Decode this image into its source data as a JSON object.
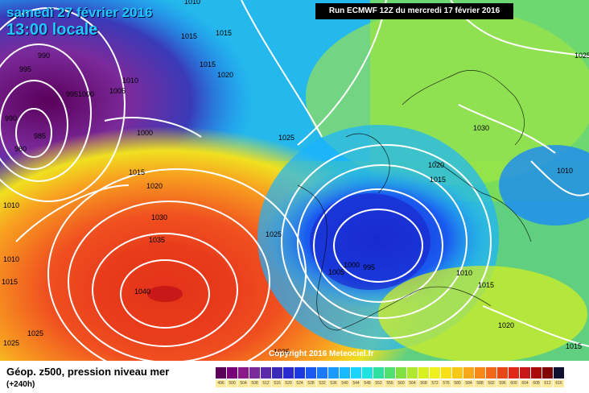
{
  "header": {
    "date_line": "samedi 27 février 2016",
    "time_line": "13:00 locale",
    "run_info": "Run ECMWF 12Z du mercredi 17 février 2016"
  },
  "copyright": "Copyright 2016 Meteociel.fr",
  "footer": {
    "title": "Géop. z500, pression niveau mer",
    "lead": "(+240h)"
  },
  "legend": {
    "values": [
      "496",
      "500",
      "504",
      "508",
      "512",
      "516",
      "520",
      "524",
      "528",
      "532",
      "536",
      "540",
      "544",
      "548",
      "552",
      "556",
      "560",
      "564",
      "568",
      "572",
      "576",
      "580",
      "584",
      "588",
      "592",
      "596",
      "600",
      "604",
      "608",
      "612",
      "616"
    ],
    "colors": [
      "#5a005a",
      "#7a007a",
      "#8a1a8a",
      "#7b2a9b",
      "#5a2aa8",
      "#3a2ab8",
      "#2a2ad0",
      "#1a3ae0",
      "#1a5af0",
      "#1a7af8",
      "#1a9aff",
      "#1abaff",
      "#1ad4ff",
      "#20e0e0",
      "#30e0a0",
      "#50e070",
      "#80e040",
      "#b0e830",
      "#d8f020",
      "#f0f020",
      "#f8e018",
      "#f8c818",
      "#f8a818",
      "#f88818",
      "#f06818",
      "#e84818",
      "#e02818",
      "#c81818",
      "#a80a0a",
      "#800505",
      "#101030"
    ]
  },
  "isobar_labels": [
    "990",
    "995",
    "985",
    "980",
    "990",
    "9951000",
    "1005",
    "1010",
    "1015",
    "1015",
    "1000",
    "1010",
    "1015",
    "1020",
    "1025",
    "1025",
    "1030",
    "1035",
    "1040",
    "1015",
    "1025",
    "1030",
    "1025",
    "1020",
    "1015",
    "1010",
    "1005",
    "1000",
    "995",
    "1010",
    "1015",
    "1020",
    "1010",
    "1015",
    "1025",
    "1010",
    "1015",
    "1020",
    "1025"
  ],
  "map_legend_colors": {
    "low": "#1a3ae0",
    "high": "#e83a1a",
    "isobar": "#ffffff"
  }
}
